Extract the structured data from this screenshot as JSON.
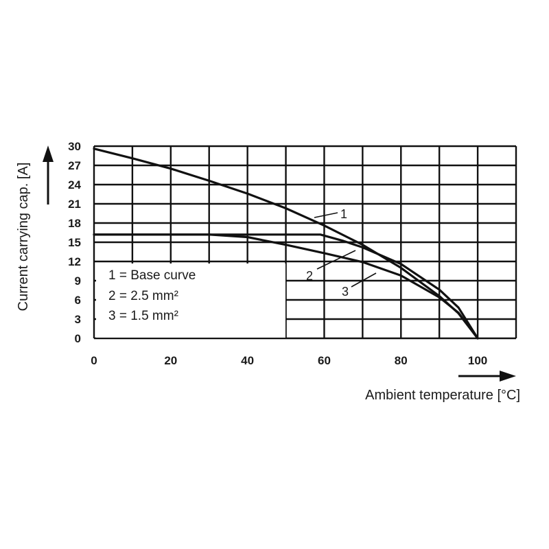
{
  "chart_data": {
    "type": "line",
    "xlabel": "Ambient temperature [°C]",
    "ylabel": "Current carrying cap. [A]",
    "xlim": [
      0,
      110
    ],
    "ylim": [
      0,
      30
    ],
    "x_ticks": [
      "0",
      "20",
      "40",
      "60",
      "80",
      "100"
    ],
    "y_ticks": [
      "0",
      "3",
      "6",
      "9",
      "12",
      "15",
      "18",
      "21",
      "24",
      "27",
      "30"
    ],
    "grid": true,
    "legend": {
      "position": "bottom-left",
      "entries": [
        "1 = Base curve",
        "2 = 2.5 mm²",
        "3 = 1.5 mm²"
      ]
    },
    "series": [
      {
        "label": "1",
        "color": "#111111",
        "x": [
          0,
          10,
          20,
          30,
          40,
          50,
          60,
          70,
          80,
          90,
          95,
          100
        ],
        "y": [
          29.6,
          28.1,
          26.5,
          24.6,
          22.6,
          20.3,
          17.6,
          14.6,
          11.0,
          6.6,
          3.9,
          0
        ]
      },
      {
        "label": "2",
        "color": "#111111",
        "x": [
          0,
          10,
          20,
          30,
          40,
          50,
          59,
          65,
          70,
          80,
          90,
          95,
          100
        ],
        "y": [
          16.2,
          16.2,
          16.2,
          16.2,
          16.2,
          16.2,
          16.2,
          15.2,
          14.2,
          11.6,
          7.6,
          4.8,
          0
        ]
      },
      {
        "label": "3",
        "color": "#111111",
        "x": [
          0,
          10,
          20,
          30,
          40,
          50,
          60,
          70,
          80,
          90,
          95,
          100
        ],
        "y": [
          16.2,
          16.2,
          16.2,
          16.2,
          15.8,
          14.6,
          13.3,
          11.9,
          9.8,
          6.4,
          4.0,
          0
        ]
      }
    ]
  }
}
